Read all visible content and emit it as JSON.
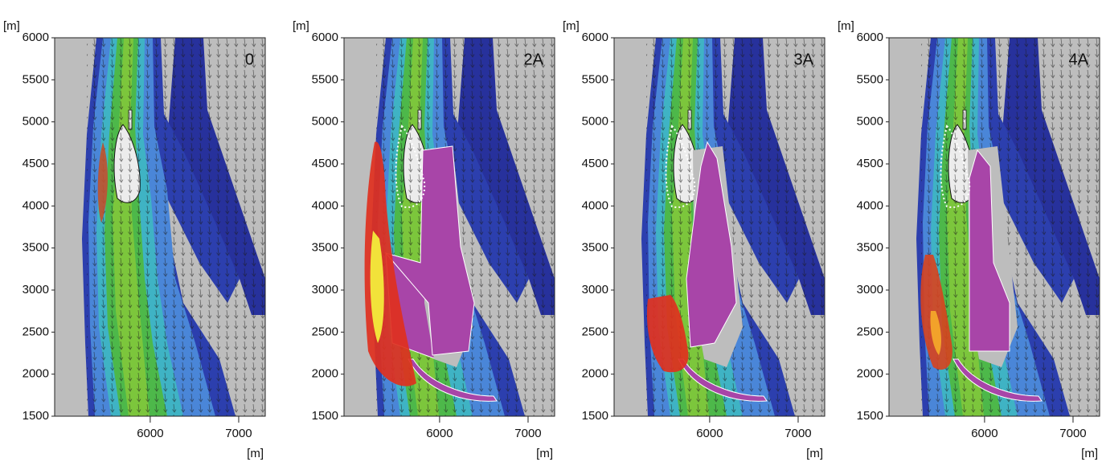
{
  "chart_data": [
    {
      "type": "contour",
      "title": "0",
      "ylabel": "[m]",
      "xlabel": "[m]",
      "xlim": [
        4920,
        7300
      ],
      "ylim": [
        1500,
        6000
      ],
      "xticks": [
        6000,
        7000
      ],
      "yticks": [
        1500,
        2000,
        2500,
        3000,
        3500,
        4000,
        4500,
        5000,
        5500,
        6000
      ]
    },
    {
      "type": "contour",
      "title": "2A",
      "ylabel": "[m]",
      "xlabel": "[m]",
      "xlim": [
        4920,
        7300
      ],
      "ylim": [
        1500,
        6000
      ],
      "xticks": [
        6000,
        7000
      ],
      "yticks": [
        1500,
        2000,
        2500,
        3000,
        3500,
        4000,
        4500,
        5000,
        5500,
        6000
      ]
    },
    {
      "type": "contour",
      "title": "3A",
      "ylabel": "[m]",
      "xlabel": "[m]",
      "xlim": [
        4920,
        7300
      ],
      "ylim": [
        1500,
        6000
      ],
      "xticks": [
        6000,
        7000
      ],
      "yticks": [
        1500,
        2000,
        2500,
        3000,
        3500,
        4000,
        4500,
        5000,
        5500,
        6000
      ]
    },
    {
      "type": "contour",
      "title": "4A",
      "ylabel": "[m]",
      "xlabel": "[m]",
      "xlim": [
        4920,
        7300
      ],
      "ylim": [
        1500,
        6000
      ],
      "xticks": [
        6000,
        7000
      ],
      "yticks": [
        1500,
        2000,
        2500,
        3000,
        3500,
        4000,
        4500,
        5000,
        5500,
        6000
      ]
    }
  ]
}
